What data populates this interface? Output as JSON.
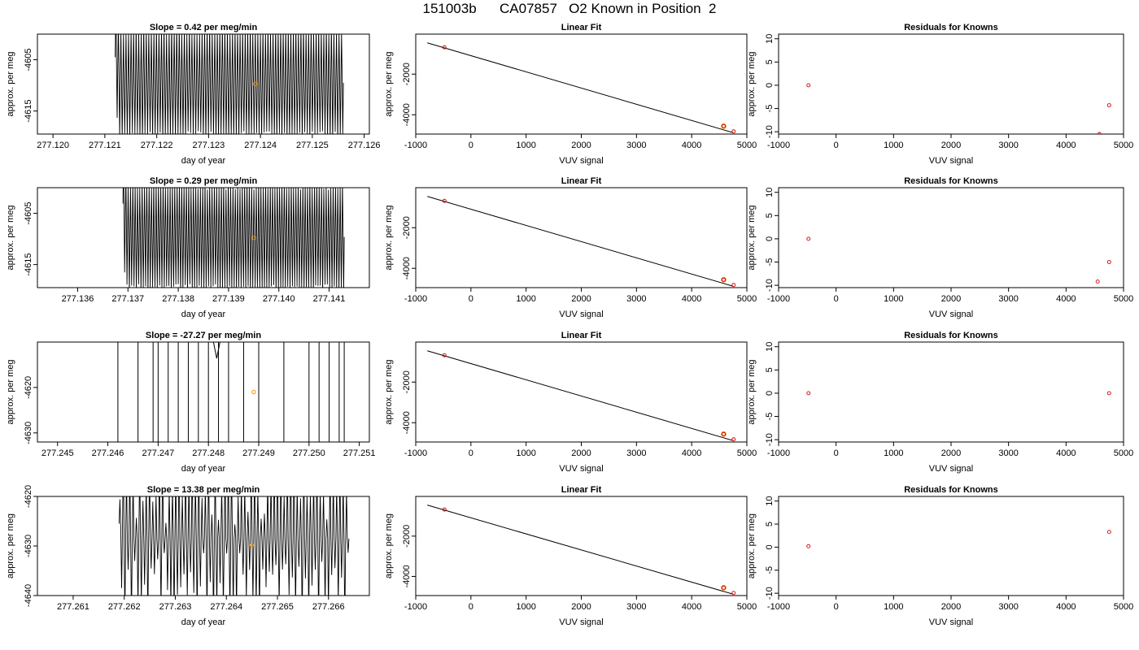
{
  "page_title": "151003b      CA07857   O2 Known in Position  2",
  "chart_data": [
    {
      "id": "r1-timeseries",
      "type": "line",
      "title": "Slope =  0.42  per meg/min",
      "xlabel": "day of year",
      "ylabel": "approx. per meg",
      "xlim": [
        277.1197,
        277.1261
      ],
      "ylim": [
        -4619.5,
        -4600.0
      ],
      "xticks": [
        277.12,
        277.121,
        277.122,
        277.123,
        277.124,
        277.125,
        277.126
      ],
      "xtick_labels": [
        "277.120",
        "277.121",
        "277.122",
        "277.123",
        "277.124",
        "277.125",
        "277.126"
      ],
      "yticks": [
        -4605,
        -4615
      ],
      "ytick_labels": [
        "-4605",
        "-4615"
      ],
      "trace": {
        "x_start": 277.1212,
        "x_end": 277.1256,
        "cycles": 90,
        "amplitude": 10.5,
        "center": -4609.5,
        "start_offset": 5.0
      },
      "marker": {
        "x": 277.1239,
        "y": -4609.7,
        "color": "#ff8c00"
      }
    },
    {
      "id": "r1-linfit",
      "type": "scatter",
      "title": "Linear Fit",
      "xlabel": "VUV signal",
      "ylabel": "approx. per meg",
      "xlim": [
        -1000,
        5000
      ],
      "ylim": [
        -4950,
        -30
      ],
      "xticks": [
        -1000,
        0,
        1000,
        2000,
        3000,
        4000,
        5000
      ],
      "xtick_labels": [
        "-1000",
        "0",
        "1000",
        "2000",
        "3000",
        "4000",
        "5000"
      ],
      "yticks": [
        -2000,
        -4000
      ],
      "ytick_labels": [
        "-2000",
        "-4000"
      ],
      "fit_line": {
        "x": [
          -790,
          4750
        ],
        "y": [
          -460,
          -4880
        ]
      },
      "points": [
        {
          "x": -480,
          "y": -680
        },
        {
          "x": 4580,
          "y": -4560
        },
        {
          "x": 4760,
          "y": -4820
        }
      ],
      "point_color": "#cc0000",
      "highlight": {
        "x": 4580,
        "y": -4560,
        "color": "#ff8c00"
      }
    },
    {
      "id": "r1-resid",
      "type": "scatter",
      "title": "Residuals for Knowns",
      "xlabel": "VUV signal",
      "ylabel": "approx. per meg",
      "xlim": [
        -1000,
        5000
      ],
      "ylim": [
        -10.5,
        11
      ],
      "xticks": [
        -1000,
        0,
        1000,
        2000,
        3000,
        4000,
        5000
      ],
      "xtick_labels": [
        "-1000",
        "0",
        "1000",
        "2000",
        "3000",
        "4000",
        "5000"
      ],
      "yticks": [
        10,
        5,
        0,
        -5,
        -10
      ],
      "ytick_labels": [
        "10",
        "5",
        "0",
        "-5",
        "-10"
      ],
      "points": [
        {
          "x": -480,
          "y": 0.0
        },
        {
          "x": 4750,
          "y": -4.3
        },
        {
          "x": 4580,
          "y": -10.5
        }
      ],
      "point_color": "#cc0000"
    },
    {
      "id": "r2-timeseries",
      "type": "line",
      "title": "Slope =  0.29  per meg/min",
      "xlabel": "day of year",
      "ylabel": "approx. per meg",
      "xlim": [
        277.1352,
        277.1418
      ],
      "ylim": [
        -4619.5,
        -4600.0
      ],
      "xticks": [
        277.136,
        277.137,
        277.138,
        277.139,
        277.14,
        277.141
      ],
      "xtick_labels": [
        "277.136",
        "277.137",
        "277.138",
        "277.139",
        "277.140",
        "277.141"
      ],
      "yticks": [
        -4605,
        -4615
      ],
      "ytick_labels": [
        "-4605",
        "-4615"
      ],
      "trace": {
        "x_start": 277.1369,
        "x_end": 277.1413,
        "cycles": 95,
        "amplitude": 10.2,
        "center": -4609.6,
        "start_offset": 6.5
      },
      "marker": {
        "x": 277.1395,
        "y": -4609.8,
        "color": "#ff8c00"
      }
    },
    {
      "id": "r2-linfit",
      "type": "scatter",
      "title": "Linear Fit",
      "xlabel": "VUV signal",
      "ylabel": "approx. per meg",
      "xlim": [
        -1000,
        5000
      ],
      "ylim": [
        -4950,
        -30
      ],
      "xticks": [
        -1000,
        0,
        1000,
        2000,
        3000,
        4000,
        5000
      ],
      "xtick_labels": [
        "-1000",
        "0",
        "1000",
        "2000",
        "3000",
        "4000",
        "5000"
      ],
      "yticks": [
        -2000,
        -4000
      ],
      "ytick_labels": [
        "-2000",
        "-4000"
      ],
      "fit_line": {
        "x": [
          -790,
          4750
        ],
        "y": [
          -460,
          -4880
        ]
      },
      "points": [
        {
          "x": -480,
          "y": -680
        },
        {
          "x": 4580,
          "y": -4560
        },
        {
          "x": 4760,
          "y": -4820
        }
      ],
      "point_color": "#cc0000",
      "highlight": {
        "x": 4580,
        "y": -4560,
        "color": "#ff8c00"
      }
    },
    {
      "id": "r2-resid",
      "type": "scatter",
      "title": "Residuals for Knowns",
      "xlabel": "VUV signal",
      "ylabel": "approx. per meg",
      "xlim": [
        -1000,
        5000
      ],
      "ylim": [
        -10.5,
        11
      ],
      "xticks": [
        -1000,
        0,
        1000,
        2000,
        3000,
        4000,
        5000
      ],
      "xtick_labels": [
        "-1000",
        "0",
        "1000",
        "2000",
        "3000",
        "4000",
        "5000"
      ],
      "yticks": [
        10,
        5,
        0,
        -5,
        -10
      ],
      "ytick_labels": [
        "10",
        "5",
        "0",
        "-5",
        "-10"
      ],
      "points": [
        {
          "x": -480,
          "y": 0.0
        },
        {
          "x": 4750,
          "y": -5.0
        },
        {
          "x": 4550,
          "y": -9.2
        }
      ],
      "point_color": "#cc0000"
    },
    {
      "id": "r3-timeseries",
      "type": "line",
      "title": "Slope =  -27.27  per meg/min",
      "xlabel": "day of year",
      "ylabel": "approx. per meg",
      "xlim": [
        277.2446,
        277.2512
      ],
      "ylim": [
        -4632,
        -4610
      ],
      "xticks": [
        277.245,
        277.246,
        277.247,
        277.248,
        277.249,
        277.25,
        277.251
      ],
      "xtick_labels": [
        "277.245",
        "277.246",
        "277.247",
        "277.248",
        "277.249",
        "277.250",
        "277.251"
      ],
      "yticks": [
        -4620,
        -4630
      ],
      "ytick_labels": [
        "-4620",
        "-4630"
      ],
      "spikes": [
        277.2462,
        277.2466,
        277.2469,
        277.247,
        277.2472,
        277.2474,
        277.2476,
        277.2478,
        277.248,
        277.2482,
        277.2484,
        277.2487,
        277.249,
        277.2495,
        277.25,
        277.2502,
        277.2504,
        277.2506,
        277.2507
      ],
      "marker": {
        "x": 277.2489,
        "y": -4621.0,
        "color": "#ff8c00"
      }
    },
    {
      "id": "r3-linfit",
      "type": "scatter",
      "title": "Linear Fit",
      "xlabel": "VUV signal",
      "ylabel": "approx. per meg",
      "xlim": [
        -1000,
        5000
      ],
      "ylim": [
        -4950,
        -30
      ],
      "xticks": [
        -1000,
        0,
        1000,
        2000,
        3000,
        4000,
        5000
      ],
      "xtick_labels": [
        "-1000",
        "0",
        "1000",
        "2000",
        "3000",
        "4000",
        "5000"
      ],
      "yticks": [
        -2000,
        -4000
      ],
      "ytick_labels": [
        "-2000",
        "-4000"
      ],
      "fit_line": {
        "x": [
          -790,
          4750
        ],
        "y": [
          -460,
          -4880
        ]
      },
      "points": [
        {
          "x": -480,
          "y": -680
        },
        {
          "x": 4580,
          "y": -4560
        },
        {
          "x": 4760,
          "y": -4820
        }
      ],
      "point_color": "#cc0000",
      "highlight": {
        "x": 4580,
        "y": -4560,
        "color": "#ff8c00"
      }
    },
    {
      "id": "r3-resid",
      "type": "scatter",
      "title": "Residuals for Knowns",
      "xlabel": "VUV signal",
      "ylabel": "approx. per meg",
      "xlim": [
        -1000,
        5000
      ],
      "ylim": [
        -10.5,
        11
      ],
      "xticks": [
        -1000,
        0,
        1000,
        2000,
        3000,
        4000,
        5000
      ],
      "xtick_labels": [
        "-1000",
        "0",
        "1000",
        "2000",
        "3000",
        "4000",
        "5000"
      ],
      "yticks": [
        10,
        5,
        0,
        -5,
        -10
      ],
      "ytick_labels": [
        "10",
        "5",
        "0",
        "-5",
        "-10"
      ],
      "points": [
        {
          "x": -480,
          "y": 0.0
        },
        {
          "x": 4750,
          "y": 0.0
        }
      ],
      "point_color": "#cc0000"
    },
    {
      "id": "r4-timeseries",
      "type": "line",
      "title": "Slope =  13.38  per meg/min",
      "xlabel": "day of year",
      "ylabel": "approx. per meg",
      "xlim": [
        277.2603,
        277.2668
      ],
      "ylim": [
        -4640,
        -4620
      ],
      "xticks": [
        277.261,
        277.262,
        277.263,
        277.264,
        277.265,
        277.266
      ],
      "xtick_labels": [
        "277.261",
        "277.262",
        "277.263",
        "277.264",
        "277.265",
        "277.266"
      ],
      "yticks": [
        -4620,
        -4630,
        -4640
      ],
      "ytick_labels": [
        "-4620",
        "-4630",
        "-4640"
      ],
      "trace": {
        "x_start": 277.2619,
        "x_end": 277.2664,
        "cycles": 70,
        "amplitude": 9.0,
        "center": -4628.5,
        "start_offset": 3.0,
        "noisy": true
      },
      "marker": {
        "x": 277.2645,
        "y": -4629.8,
        "color": "#ff8c00"
      }
    },
    {
      "id": "r4-linfit",
      "type": "scatter",
      "title": "Linear Fit",
      "xlabel": "VUV signal",
      "ylabel": "approx. per meg",
      "xlim": [
        -1000,
        5000
      ],
      "ylim": [
        -4950,
        -30
      ],
      "xticks": [
        -1000,
        0,
        1000,
        2000,
        3000,
        4000,
        5000
      ],
      "xtick_labels": [
        "-1000",
        "0",
        "1000",
        "2000",
        "3000",
        "4000",
        "5000"
      ],
      "yticks": [
        -2000,
        -4000
      ],
      "ytick_labels": [
        "-2000",
        "-4000"
      ],
      "fit_line": {
        "x": [
          -790,
          4750
        ],
        "y": [
          -460,
          -4880
        ]
      },
      "points": [
        {
          "x": -480,
          "y": -680
        },
        {
          "x": 4580,
          "y": -4560
        },
        {
          "x": 4760,
          "y": -4820
        }
      ],
      "point_color": "#cc0000",
      "highlight": {
        "x": 4580,
        "y": -4560,
        "color": "#ff8c00"
      }
    },
    {
      "id": "r4-resid",
      "type": "scatter",
      "title": "Residuals for Knowns",
      "xlabel": "VUV signal",
      "ylabel": "approx. per meg",
      "xlim": [
        -1000,
        5000
      ],
      "ylim": [
        -10.5,
        11
      ],
      "xticks": [
        -1000,
        0,
        1000,
        2000,
        3000,
        4000,
        5000
      ],
      "xtick_labels": [
        "-1000",
        "0",
        "1000",
        "2000",
        "3000",
        "4000",
        "5000"
      ],
      "yticks": [
        10,
        5,
        0,
        -5,
        -10
      ],
      "ytick_labels": [
        "10",
        "5",
        "0",
        "-5",
        "-10"
      ],
      "points": [
        {
          "x": -480,
          "y": 0.2
        },
        {
          "x": 4750,
          "y": 3.3
        }
      ],
      "point_color": "#cc0000"
    }
  ]
}
